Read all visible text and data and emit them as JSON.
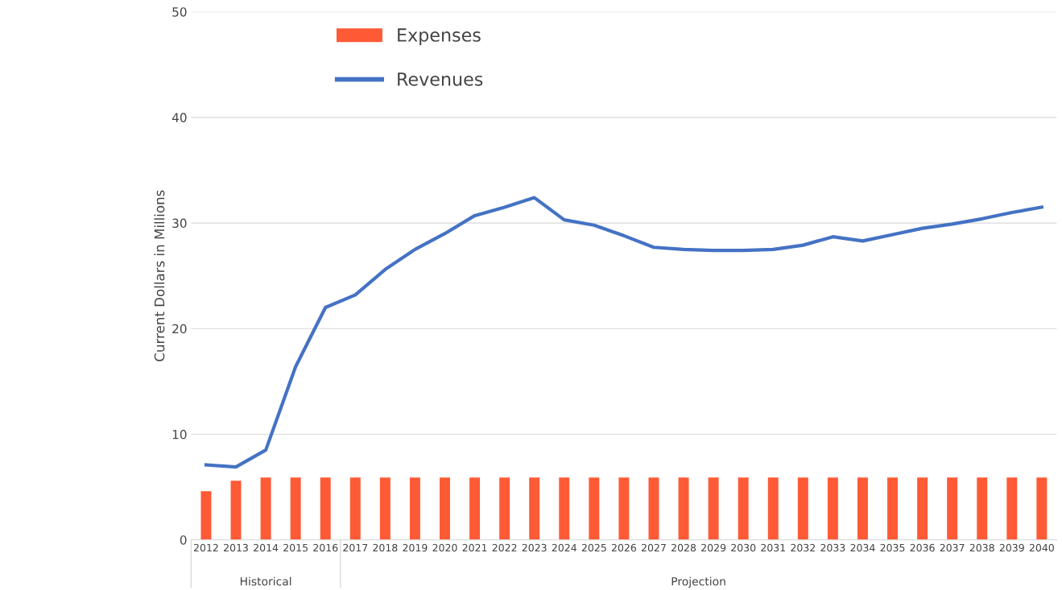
{
  "chart_data": {
    "type": "bar",
    "ylabel": "Current Dollars in Millions",
    "categories": [
      "2012",
      "2013",
      "2014",
      "2015",
      "2016",
      "2017",
      "2018",
      "2019",
      "2020",
      "2021",
      "2022",
      "2023",
      "2024",
      "2025",
      "2026",
      "2027",
      "2028",
      "2029",
      "2030",
      "2031",
      "2032",
      "2033",
      "2034",
      "2035",
      "2036",
      "2037",
      "2038",
      "2039",
      "2040"
    ],
    "series": [
      {
        "name": "Expenses",
        "color": "#ff5a36",
        "values": [
          4.6,
          5.6,
          5.9,
          5.9,
          5.9,
          5.9,
          5.9,
          5.9,
          5.9,
          5.9,
          5.9,
          5.9,
          5.9,
          5.9,
          5.9,
          5.9,
          5.9,
          5.9,
          5.9,
          5.9,
          5.9,
          5.9,
          5.9,
          5.9,
          5.9,
          5.9,
          5.9,
          5.9,
          5.9
        ]
      },
      {
        "name": "Revenues",
        "type": "line",
        "color": "#4472c4",
        "values": [
          7.1,
          6.9,
          8.5,
          16.4,
          22.0,
          23.2,
          25.6,
          27.5,
          29.0,
          30.7,
          31.5,
          32.4,
          30.3,
          29.8,
          28.8,
          27.7,
          27.5,
          27.4,
          27.4,
          27.5,
          27.9,
          28.7,
          28.3,
          28.9,
          29.5,
          29.9,
          30.4,
          31.0,
          31.5
        ]
      }
    ],
    "ylim": [
      0,
      50
    ],
    "yticks": [
      0,
      10,
      20,
      30,
      40,
      50
    ],
    "grid": "y",
    "legend": "top left",
    "annotations": [
      "Historical",
      "Projection"
    ]
  }
}
